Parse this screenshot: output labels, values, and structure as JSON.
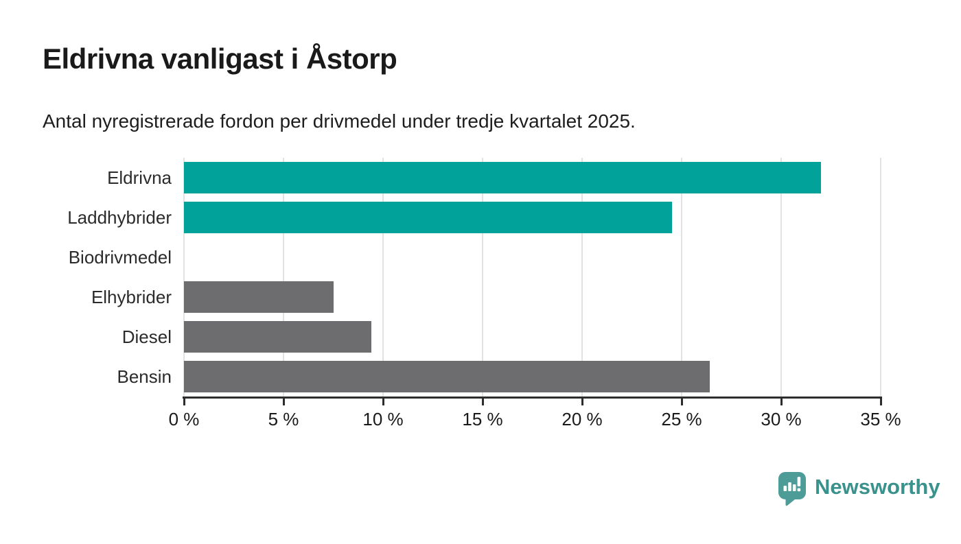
{
  "header": {
    "title": "Eldrivna vanligast i Åstorp",
    "subtitle": "Antal nyregistrerade fordon per drivmedel under tredje kvartalet 2025."
  },
  "chart_data": {
    "type": "bar",
    "orientation": "horizontal",
    "title": "Eldrivna vanligast i Åstorp",
    "subtitle": "Antal nyregistrerade fordon per drivmedel under tredje kvartalet 2025.",
    "categories": [
      "Eldrivna",
      "Laddhybrider",
      "Biodrivmedel",
      "Elhybrider",
      "Diesel",
      "Bensin"
    ],
    "values": [
      32.0,
      24.5,
      0,
      7.5,
      9.4,
      26.4
    ],
    "unit": "%",
    "bar_colors": [
      "#00a29a",
      "#00a29a",
      "#6d6d70",
      "#6d6d70",
      "#6d6d70",
      "#6d6d70"
    ],
    "highlight_color": "#00a29a",
    "default_color": "#6d6d70",
    "xlabel": "",
    "ylabel": "",
    "xlim": [
      0,
      35
    ],
    "x_ticks": [
      0,
      5,
      10,
      15,
      20,
      25,
      30,
      35
    ],
    "x_tick_labels": [
      "0 %",
      "5 %",
      "10 %",
      "15 %",
      "20 %",
      "25 %",
      "30 %",
      "35 %"
    ],
    "grid": "vertical",
    "grid_color": "#e2e2e2",
    "axis_color": "#2d2d2d",
    "legend": "none"
  },
  "footer": {
    "brand": "Newsworthy",
    "brand_text_color": "#3a928d",
    "logo_mark_color": "#4d9c97"
  }
}
